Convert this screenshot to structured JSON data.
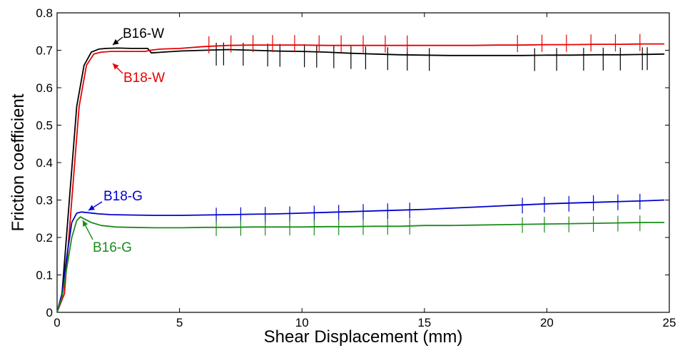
{
  "chart_data": {
    "type": "line",
    "title": "",
    "xlabel": "Shear Displacement (mm)",
    "ylabel": "Friction coefficient",
    "xlim": [
      0,
      25
    ],
    "ylim": [
      0,
      0.8
    ],
    "xticks": [
      0,
      5,
      10,
      15,
      20,
      25
    ],
    "yticks": [
      0,
      0.1,
      0.2,
      0.3,
      0.4,
      0.5,
      0.6,
      0.7,
      0.8
    ],
    "xtick_labels": [
      "0",
      "5",
      "10",
      "15",
      "20",
      "25"
    ],
    "ytick_labels": [
      "0",
      "0.1",
      "0.2",
      "0.3",
      "0.4",
      "0.5",
      "0.6",
      "0.7",
      "0.8"
    ],
    "grid": false,
    "legend": "none",
    "series": [
      {
        "name": "B16-W",
        "color": "#000000",
        "x": [
          0,
          0.2,
          0.5,
          0.8,
          1.1,
          1.4,
          1.7,
          2.0,
          2.5,
          3.0,
          3.7,
          3.85,
          4.3,
          5,
          6,
          7,
          8,
          9,
          10,
          11,
          12,
          13,
          14,
          15,
          16,
          17,
          18,
          19,
          20,
          21,
          22,
          23,
          24,
          24.8
        ],
        "y": [
          0,
          0.05,
          0.3,
          0.55,
          0.66,
          0.695,
          0.703,
          0.705,
          0.706,
          0.705,
          0.705,
          0.693,
          0.695,
          0.698,
          0.7,
          0.702,
          0.7,
          0.698,
          0.697,
          0.695,
          0.692,
          0.69,
          0.688,
          0.687,
          0.686,
          0.686,
          0.686,
          0.686,
          0.687,
          0.687,
          0.688,
          0.688,
          0.689,
          0.69
        ],
        "stick_slip_x": [
          6.5,
          6.8,
          7.6,
          8.6,
          9.1,
          10.1,
          10.6,
          11.3,
          12.0,
          12.6,
          13.5,
          14.3,
          15.2,
          19.5,
          20.4,
          21.5,
          22.3,
          23.0,
          23.9,
          24.1
        ],
        "label_x": 2.2,
        "label_y": 0.705
      },
      {
        "name": "B18-W",
        "color": "#e60000",
        "x": [
          0,
          0.3,
          0.6,
          0.9,
          1.2,
          1.5,
          1.8,
          2.2,
          3.0,
          3.6,
          3.8,
          4.2,
          5,
          6,
          7,
          8,
          9,
          10,
          11,
          12,
          13,
          14,
          15,
          16,
          17,
          18,
          19,
          20,
          21,
          22,
          23,
          24,
          24.8
        ],
        "y": [
          0,
          0.05,
          0.3,
          0.55,
          0.66,
          0.69,
          0.695,
          0.697,
          0.697,
          0.697,
          0.7,
          0.703,
          0.705,
          0.71,
          0.713,
          0.714,
          0.714,
          0.714,
          0.713,
          0.713,
          0.713,
          0.713,
          0.713,
          0.713,
          0.713,
          0.714,
          0.714,
          0.715,
          0.715,
          0.716,
          0.716,
          0.717,
          0.717
        ],
        "stick_slip_x": [
          6.2,
          7.1,
          8.0,
          8.8,
          9.7,
          10.7,
          11.6,
          12.5,
          13.4,
          14.3,
          18.8,
          19.8,
          20.8,
          21.8,
          22.8,
          23.8
        ],
        "label_x": 2.0,
        "label_y": 0.69
      },
      {
        "name": "B18-G",
        "color": "#0000cc",
        "x": [
          0,
          0.2,
          0.4,
          0.6,
          0.8,
          1.0,
          1.3,
          1.7,
          2.2,
          3,
          4,
          5,
          6,
          7,
          8,
          9,
          10,
          11,
          12,
          13,
          14,
          15,
          16,
          17,
          18,
          19,
          20,
          21,
          22,
          23,
          24,
          24.8
        ],
        "y": [
          0,
          0.05,
          0.15,
          0.24,
          0.265,
          0.268,
          0.266,
          0.263,
          0.261,
          0.26,
          0.259,
          0.259,
          0.26,
          0.261,
          0.262,
          0.263,
          0.265,
          0.267,
          0.269,
          0.271,
          0.273,
          0.275,
          0.278,
          0.281,
          0.284,
          0.287,
          0.29,
          0.292,
          0.294,
          0.296,
          0.298,
          0.3
        ],
        "stick_slip_x": [
          6.5,
          7.5,
          8.5,
          9.5,
          10.5,
          11.5,
          12.5,
          13.5,
          14.4,
          19.0,
          19.9,
          20.9,
          21.9,
          22.9,
          23.8
        ],
        "label_x": 1.0,
        "label_y": 0.27
      },
      {
        "name": "B16-G",
        "color": "#1a8c1a",
        "x": [
          0,
          0.2,
          0.4,
          0.6,
          0.8,
          0.95,
          1.1,
          1.4,
          1.8,
          2.4,
          3,
          4,
          5,
          6,
          7,
          8,
          9,
          10,
          11,
          12,
          13,
          14,
          15,
          16,
          17,
          18,
          19,
          20,
          21,
          22,
          23,
          24,
          24.8
        ],
        "y": [
          0,
          0.04,
          0.12,
          0.2,
          0.245,
          0.255,
          0.25,
          0.24,
          0.232,
          0.228,
          0.227,
          0.226,
          0.226,
          0.227,
          0.227,
          0.228,
          0.228,
          0.228,
          0.229,
          0.229,
          0.23,
          0.23,
          0.232,
          0.232,
          0.233,
          0.234,
          0.235,
          0.236,
          0.237,
          0.238,
          0.239,
          0.24,
          0.24
        ],
        "stick_slip_x": [
          6.5,
          7.5,
          8.5,
          9.5,
          10.5,
          11.5,
          12.5,
          13.5,
          14.4,
          19.0,
          19.9,
          20.9,
          21.9,
          22.9,
          23.8
        ],
        "label_x": 1.0,
        "label_y": 0.25
      }
    ]
  }
}
